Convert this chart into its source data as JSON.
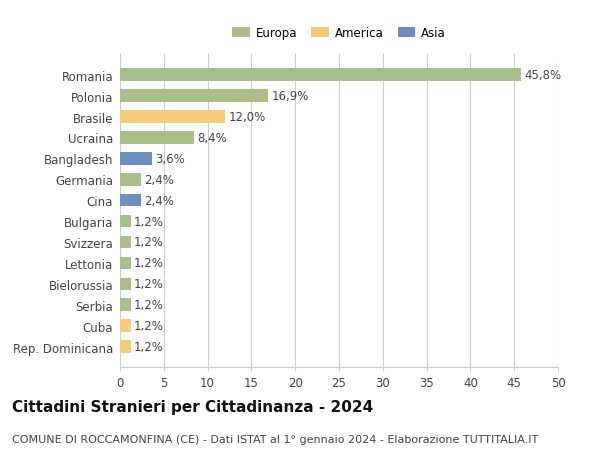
{
  "categories": [
    "Romania",
    "Polonia",
    "Brasile",
    "Ucraina",
    "Bangladesh",
    "Germania",
    "Cina",
    "Bulgaria",
    "Svizzera",
    "Lettonia",
    "Bielorussia",
    "Serbia",
    "Cuba",
    "Rep. Dominicana"
  ],
  "values": [
    45.8,
    16.9,
    12.0,
    8.4,
    3.6,
    2.4,
    2.4,
    1.2,
    1.2,
    1.2,
    1.2,
    1.2,
    1.2,
    1.2
  ],
  "labels": [
    "45,8%",
    "16,9%",
    "12,0%",
    "8,4%",
    "3,6%",
    "2,4%",
    "2,4%",
    "1,2%",
    "1,2%",
    "1,2%",
    "1,2%",
    "1,2%",
    "1,2%",
    "1,2%"
  ],
  "colors": [
    "#a8bf8a",
    "#a8bf8a",
    "#f5cd7a",
    "#a8bf8a",
    "#6b8fbf",
    "#a8bf8a",
    "#6b8fbf",
    "#a8bf8a",
    "#a8bf8a",
    "#a8bf8a",
    "#a8bf8a",
    "#a8bf8a",
    "#f5cd7a",
    "#f5cd7a"
  ],
  "legend_labels": [
    "Europa",
    "America",
    "Asia"
  ],
  "legend_colors": [
    "#a8bf8a",
    "#f5cd7a",
    "#6b8fbf"
  ],
  "title": "Cittadini Stranieri per Cittadinanza - 2024",
  "subtitle": "COMUNE DI ROCCAMONFINA (CE) - Dati ISTAT al 1° gennaio 2024 - Elaborazione TUTTITALIA.IT",
  "xlim": [
    0,
    50
  ],
  "xticks": [
    0,
    5,
    10,
    15,
    20,
    25,
    30,
    35,
    40,
    45,
    50
  ],
  "background_color": "#ffffff",
  "bar_height": 0.6,
  "grid_color": "#cccccc",
  "label_fontsize": 8.5,
  "tick_fontsize": 8.5,
  "title_fontsize": 11,
  "subtitle_fontsize": 8
}
